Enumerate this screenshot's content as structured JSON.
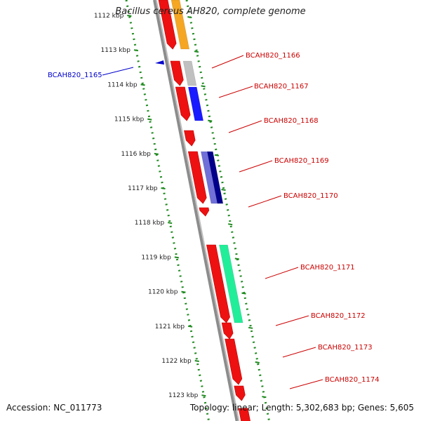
{
  "title": "Bacillus cereus AH820, complete genome",
  "footer": {
    "accession": "Accession: NC_011773",
    "summary": "Topology: linear; Length: 5,302,683 bp; Genes: 5,605"
  },
  "colors": {
    "ruler": "#1e8a1e",
    "backbone": "#8c8c8c",
    "label": "#cc0000",
    "label_highlight": "#0000cc",
    "gene": "#ee1111"
  },
  "ruler_ticks": [
    "1112 kbp",
    "1113 kbp",
    "1114 kbp",
    "1115 kbp",
    "1116 kbp",
    "1117 kbp",
    "1118 kbp",
    "1119 kbp",
    "1120 kbp",
    "1121 kbp",
    "1122 kbp",
    "1123 kbp"
  ],
  "genes": [
    {
      "label": "BCAH820_1165",
      "side": "left"
    },
    {
      "label": "BCAH820_1166",
      "side": "right"
    },
    {
      "label": "BCAH820_1167",
      "side": "right"
    },
    {
      "label": "BCAH820_1168",
      "side": "right"
    },
    {
      "label": "BCAH820_1169",
      "side": "right"
    },
    {
      "label": "BCAH820_1170",
      "side": "right"
    },
    {
      "label": "BCAH820_1171",
      "side": "right"
    },
    {
      "label": "BCAH820_1172",
      "side": "right"
    },
    {
      "label": "BCAH820_1173",
      "side": "right"
    },
    {
      "label": "BCAH820_1174",
      "side": "right"
    }
  ],
  "cog_colors": [
    "#f5a623",
    "#c0c0c0",
    "#1a1aff",
    "#7070d8",
    "#00008b",
    "#22ee99"
  ]
}
